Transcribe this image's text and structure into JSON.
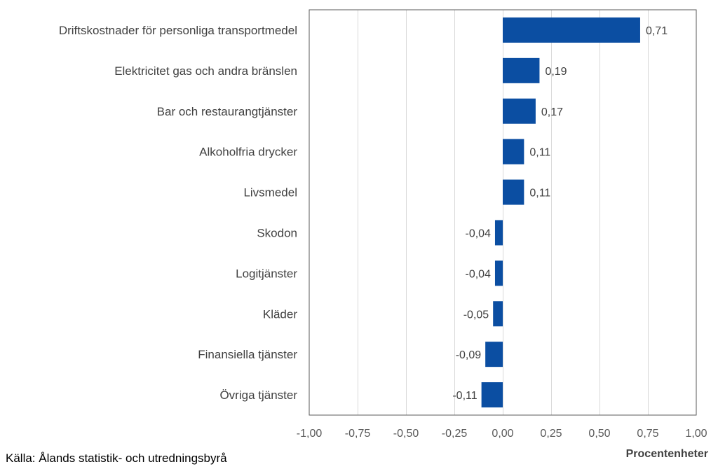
{
  "chart_data": {
    "type": "bar",
    "orientation": "horizontal",
    "categories": [
      "Driftskostnader för personliga transportmedel",
      "Elektricitet gas och andra bränslen",
      "Bar och restaurangtjänster",
      "Alkoholfria drycker",
      "Livsmedel",
      "Skodon",
      "Logitjänster",
      "Kläder",
      "Finansiella tjänster",
      "Övriga tjänster"
    ],
    "values": [
      0.71,
      0.19,
      0.17,
      0.11,
      0.11,
      -0.04,
      -0.04,
      -0.05,
      -0.09,
      -0.11
    ],
    "data_labels": [
      "0,71",
      "0,19",
      "0,17",
      "0,11",
      "0,11",
      "-0,04",
      "-0,04",
      "-0,05",
      "-0,09",
      "-0,11"
    ],
    "xlim": [
      -1.0,
      1.0
    ],
    "xticks": [
      -1.0,
      -0.75,
      -0.5,
      -0.25,
      0.0,
      0.25,
      0.5,
      0.75,
      1.0
    ],
    "xtick_labels": [
      "-1,00",
      "-0,75",
      "-0,50",
      "-0,25",
      "0,00",
      "0,25",
      "0,50",
      "0,75",
      "1,00"
    ],
    "xlabel": "Procentenheter",
    "grid": true,
    "bar_color": "#0B4EA2"
  },
  "source": "Källa: Ålands statistik- och utredningsbyrå"
}
